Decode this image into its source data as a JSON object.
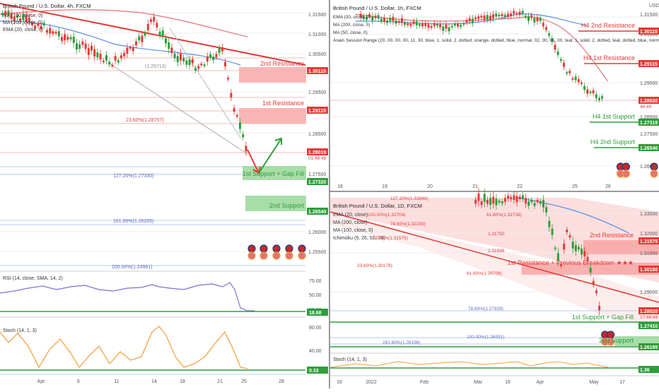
{
  "panels": {
    "h4": {
      "title": "British Pound / U.S. Dollar, 4h, FXCM",
      "indicators": [
        "MA (100, close, 0)",
        "MA (200, close, 0)",
        "EMA (20, close, 0)"
      ],
      "price_labels": [
        {
          "text": "1.31500",
          "style": "axis"
        },
        {
          "text": "1.31000",
          "style": "axis"
        },
        {
          "text": "1.30500",
          "style": "axis"
        },
        {
          "text": "1.30115",
          "style": "red"
        },
        {
          "text": "1.29500",
          "style": "axis"
        },
        {
          "text": "1.29115",
          "style": "red"
        },
        {
          "text": "1.28500",
          "style": "axis"
        },
        {
          "text": "1.28019",
          "style": "red"
        },
        {
          "text": "01:48:49",
          "style": "red-sub"
        },
        {
          "text": "1.27500",
          "style": "axis"
        },
        {
          "text": "1.27320",
          "style": "green"
        },
        {
          "text": "1.26540",
          "style": "green"
        },
        {
          "text": "1.26000",
          "style": "axis"
        },
        {
          "text": "1.25500",
          "style": "axis"
        }
      ],
      "zones": [
        {
          "label": "2nd Resistance",
          "kind": "resistance"
        },
        {
          "label": "1st Resistance",
          "kind": "resistance"
        },
        {
          "label": "1st Support + Gap Fill",
          "kind": "support"
        },
        {
          "label": "2nd Support",
          "kind": "support"
        }
      ],
      "fib_labels": [
        "23.60%(1.28757)",
        "127.20%(1.27330)",
        "161.80%(1.26205)",
        "(1.29713)",
        "200.00%(1.24961)"
      ],
      "x_labels": [
        "Apr",
        "6",
        "11",
        "14",
        "18",
        "21",
        "25",
        "28"
      ],
      "rsi": {
        "title": "RSI (14, close, SMA, 14, 2)",
        "axis": [
          "75.00",
          "50.00",
          "25.00"
        ],
        "value": "18.68"
      },
      "stoch": {
        "title": "Stoch (14, 1, 3)",
        "axis": [
          "80.00",
          "40.00"
        ],
        "value": "0.33"
      }
    },
    "h1": {
      "title": "British Pound / U.S. Dollar, 1h, FXCM",
      "indicators": [
        "EMA (20, close, 0)",
        "MA (200, close, 0)",
        "MA (50, close, 0)",
        "Asian Session Range (20, 00, 00, 00, 11, 30, blue, 1, solid, 2, dotted, orange, dotted, blue, normal, 02, 00, 05, 00, teal, 1, solid, 2, dotted, teal, dotted, blue, normal)"
      ],
      "currency": "USD",
      "price_labels": [
        {
          "text": "1.31500",
          "style": "axis"
        },
        {
          "text": "1.31000",
          "style": "axis"
        },
        {
          "text": "1.30115",
          "style": "red"
        },
        {
          "text": "1.29500",
          "style": "axis"
        },
        {
          "text": "1.29115",
          "style": "red"
        },
        {
          "text": "1.28500",
          "style": "axis"
        },
        {
          "text": "1.28020",
          "style": "red"
        },
        {
          "text": "48:49",
          "style": "red-sub"
        },
        {
          "text": "1.27500",
          "style": "axis"
        },
        {
          "text": "1.27319",
          "style": "green"
        },
        {
          "text": "1.26540",
          "style": "green"
        },
        {
          "text": "1.26000",
          "style": "axis"
        }
      ],
      "levels": [
        {
          "label": "H4 2nd Resistance",
          "kind": "resistance"
        },
        {
          "label": "H4 1st Resistance",
          "kind": "resistance"
        },
        {
          "label": "H4 1st Support",
          "kind": "support"
        },
        {
          "label": "H4 2nd Support",
          "kind": "support"
        }
      ],
      "x_labels": [
        "18",
        "19",
        "20",
        "21",
        "22",
        "25",
        "26"
      ]
    },
    "d1": {
      "title": "British Pound / U.S. Dollar, 1D, FXCM",
      "indicators": [
        "EMA (20, close)",
        "MA (200, close)",
        "MA (100, close, 0)",
        "Ichimoku (9, 26, 52, 26)"
      ],
      "price_labels": [
        {
          "text": "1.33000",
          "style": "axis"
        },
        {
          "text": "1.32000",
          "style": "axis"
        },
        {
          "text": "1.31575",
          "style": "red"
        },
        {
          "text": "1.31000",
          "style": "axis"
        },
        {
          "text": "1.30180",
          "style": "red"
        },
        {
          "text": "1.29000",
          "style": "axis"
        },
        {
          "text": "1.28020",
          "style": "red"
        },
        {
          "text": "17:48:49",
          "style": "red-sub"
        },
        {
          "text": "1.27410",
          "style": "green"
        },
        {
          "text": "1.26195",
          "style": "green"
        },
        {
          "text": "1.36",
          "style": "green"
        }
      ],
      "zones": [
        {
          "label": "2nd Resistance",
          "kind": "resistance"
        },
        {
          "label": "1st Resistance + Previous Breakdown ★★★",
          "kind": "resistance"
        },
        {
          "label": "1st Support + Gap Fill",
          "kind": "support"
        },
        {
          "label": "2nd Support",
          "kind": "support"
        }
      ],
      "fib_labels": [
        "78.60%(1.32259)",
        "61.80%(1.32738)",
        "23.60%(1.30178)",
        "61.80%(1.29708)",
        "78.60%(1.27929)",
        "100.00%(1.26551)",
        "261.80%(1.26196)",
        "127.20%(1.33848)",
        "100.00%(1.32704)",
        "38.20%(1.31575)",
        "1.31898",
        "1.31750"
      ],
      "x_labels": [
        "16",
        "2022",
        "Feb",
        "Mar",
        "16",
        "Apr",
        "May",
        "17"
      ],
      "stoch": {
        "title": "Stoch (14, 1, 3)"
      }
    }
  },
  "chart_data": [
    {
      "type": "candlestick",
      "title": "British Pound / U.S. Dollar, 4h, FXCM",
      "x": [
        "Apr",
        "6",
        "11",
        "14",
        "18",
        "21",
        "25"
      ],
      "close": [
        1.3105,
        1.3088,
        1.3012,
        1.3138,
        1.3035,
        1.3045,
        1.2802
      ],
      "ylim": [
        1.25,
        1.318
      ],
      "levels": {
        "2nd Resistance": 1.30115,
        "1st Resistance": 1.29115,
        "1st Support + Gap Fill": 1.2732,
        "2nd Support": 1.2654,
        "last": 1.28019
      }
    },
    {
      "type": "candlestick",
      "title": "British Pound / U.S. Dollar, 1h, FXCM",
      "x": [
        "18",
        "19",
        "20",
        "21",
        "22",
        "25"
      ],
      "close": [
        1.304,
        1.306,
        1.3075,
        1.3085,
        1.3062,
        1.2802
      ],
      "ylim": [
        1.258,
        1.318
      ],
      "levels": {
        "H4 2nd Resistance": 1.30115,
        "H4 1st Resistance": 1.29115,
        "H4 1st Support": 1.27319,
        "H4 2nd Support": 1.2654,
        "last": 1.2802
      }
    },
    {
      "type": "candlestick",
      "title": "British Pound / U.S. Dollar, 1D, FXCM",
      "x": [
        "2022",
        "Feb",
        "Mar",
        "16",
        "Apr",
        "May"
      ],
      "close": [
        1.345,
        1.352,
        1.315,
        1.318,
        1.305,
        1.2802
      ],
      "ylim": [
        1.255,
        1.34
      ],
      "levels": {
        "2nd Resistance": 1.31575,
        "1st Resistance + Previous Breakdown": 1.3018,
        "1st Support + Gap Fill": 1.2741,
        "2nd Support": 1.26195,
        "last": 1.2802
      }
    }
  ]
}
